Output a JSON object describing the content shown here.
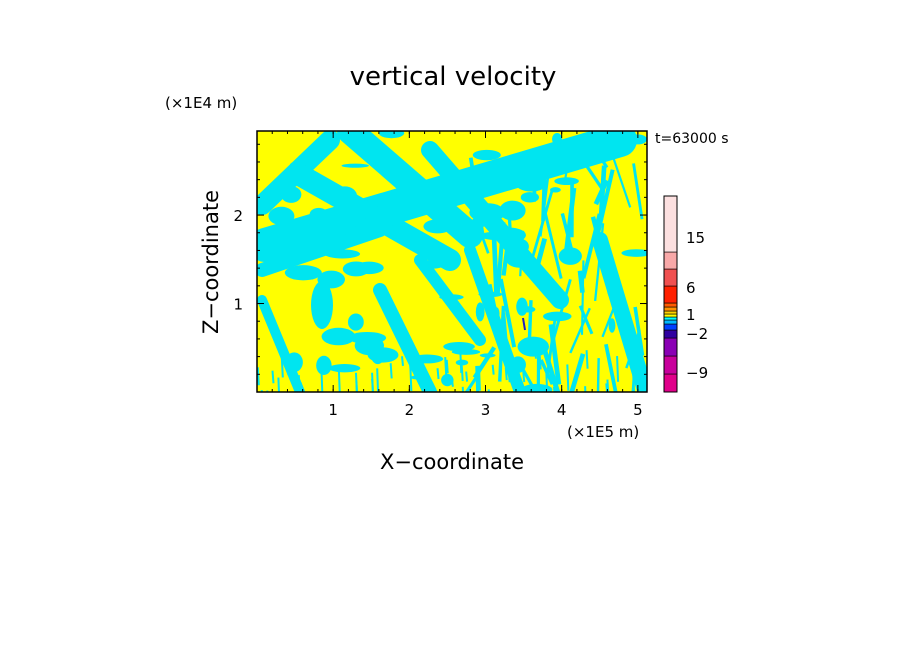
{
  "chart_data": {
    "type": "heatmap",
    "title": "vertical velocity",
    "xlabel": "X−coordinate",
    "ylabel": "Z−coordinate",
    "x_unit": "(×1E5 m)",
    "y_unit": "(×1E4 m)",
    "time_label": "t=63000 s",
    "xlim": [
      0,
      5.12
    ],
    "ylim": [
      0,
      2.95
    ],
    "x_ticks": [
      "1",
      "2",
      "3",
      "4",
      "5"
    ],
    "y_ticks": [
      "1",
      "2"
    ],
    "field_colors": {
      "positive": "#ffff00",
      "negative": "#00e5f0",
      "strong_negative": "#2020c0"
    },
    "colorbar": {
      "tick_labels": [
        "15",
        "6",
        "1",
        "−2",
        "−9"
      ],
      "colors": [
        "#e0008a",
        "#c8009c",
        "#8a00b4",
        "#3000a0",
        "#0040ff",
        "#00b8ff",
        "#00ffff",
        "#ffff00",
        "#ffd000",
        "#ff9000",
        "#ff5a00",
        "#ff2000",
        "#f05050",
        "#f8a8a8",
        "#fce0e0"
      ]
    }
  }
}
